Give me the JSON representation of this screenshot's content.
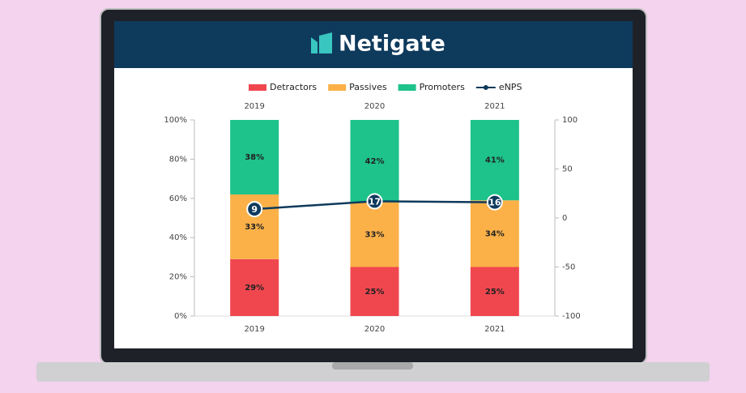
{
  "chart_data": {
    "type": "bar",
    "stacked": true,
    "title": "Netigate",
    "categories": [
      "2019",
      "2020",
      "2021"
    ],
    "series": [
      {
        "name": "Detractors",
        "color": "#f0474f",
        "values": [
          29,
          25,
          25
        ],
        "value_labels": [
          "29%",
          "25%",
          "25%"
        ]
      },
      {
        "name": "Passives",
        "color": "#fbb148",
        "values": [
          33,
          33,
          34
        ],
        "value_labels": [
          "33%",
          "33%",
          "34%"
        ]
      },
      {
        "name": "Promoters",
        "color": "#1ec28b",
        "values": [
          38,
          42,
          41
        ],
        "value_labels": [
          "38%",
          "42%",
          "41%"
        ]
      },
      {
        "name": "eNPS",
        "color": "#0e3a5c",
        "type": "line",
        "axis": "y2",
        "values": [
          9,
          17,
          16
        ]
      }
    ],
    "ylim": [
      0,
      100
    ],
    "yticks": [
      {
        "value": 0,
        "label": "0%"
      },
      {
        "value": 20,
        "label": "20%"
      },
      {
        "value": 40,
        "label": "40%"
      },
      {
        "value": 60,
        "label": "60%"
      },
      {
        "value": 80,
        "label": "80%"
      },
      {
        "value": 100,
        "label": "100%"
      }
    ],
    "y2lim": [
      -100,
      100
    ],
    "y2ticks": [
      -100,
      -50,
      0,
      50,
      100
    ],
    "legend": "top"
  }
}
